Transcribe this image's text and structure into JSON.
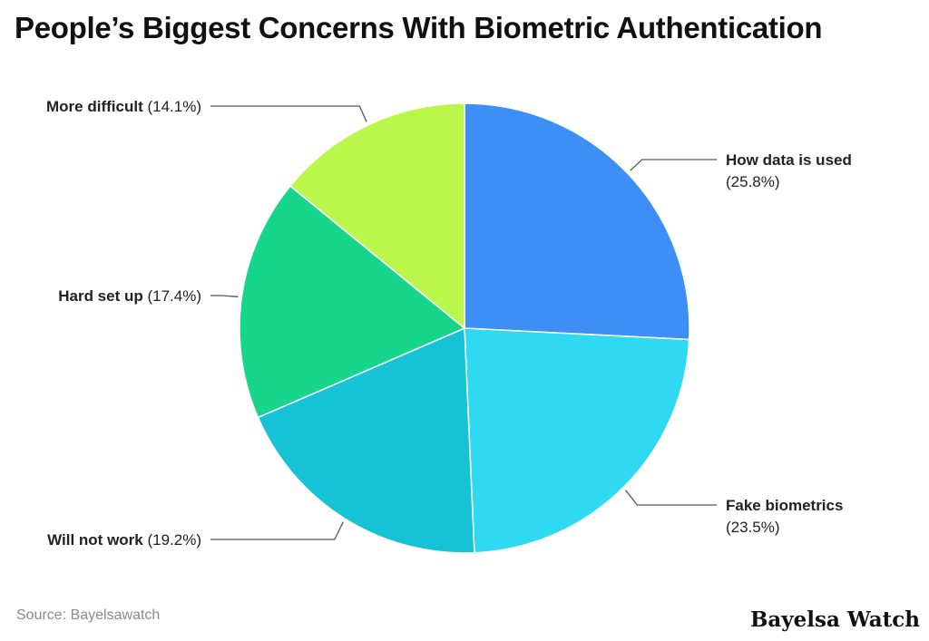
{
  "chart_data": {
    "type": "pie",
    "title": "People’s Biggest Concerns With Biometric Authentication",
    "slices": [
      {
        "label": "How data is used",
        "value": 25.8,
        "pct_text": "(25.8%)",
        "color": "#3d8ff5"
      },
      {
        "label": "Fake biometrics",
        "value": 23.5,
        "pct_text": "(23.5%)",
        "color": "#2fd9f2"
      },
      {
        "label": "Will not work",
        "value": 19.2,
        "pct_text": "(19.2%)",
        "color": "#15c2d6"
      },
      {
        "label": "Hard set up",
        "value": 17.4,
        "pct_text": "(17.4%)",
        "color": "#17d68c"
      },
      {
        "label": "More difficult",
        "value": 14.1,
        "pct_text": "(14.1%)",
        "color": "#bbf74a"
      }
    ]
  },
  "footer": {
    "source": "Source: Bayelsawatch",
    "brand": "Bayelsa Watch"
  }
}
